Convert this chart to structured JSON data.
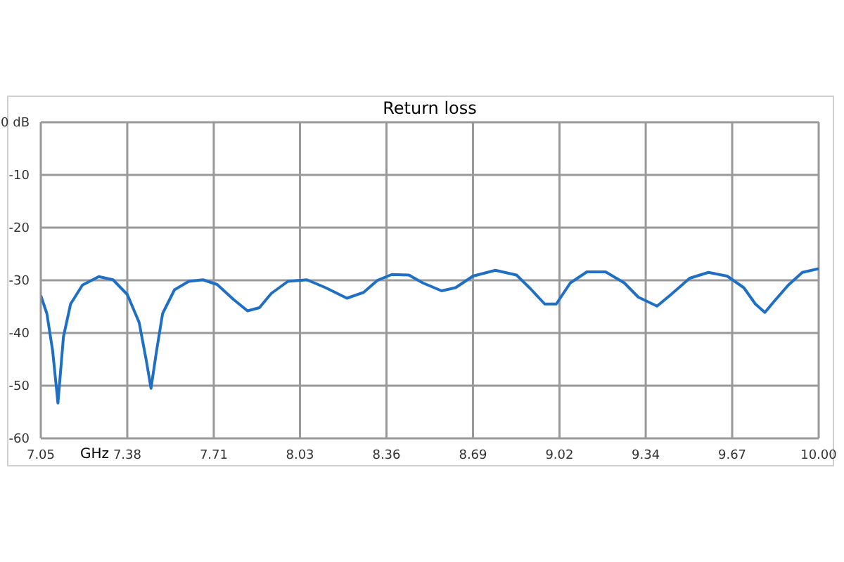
{
  "chart_data": {
    "type": "line",
    "title": "Return loss",
    "xlabel": "GHz",
    "x": [
      7.05,
      7.073,
      7.095,
      7.115,
      7.136,
      7.163,
      7.208,
      7.27,
      7.324,
      7.378,
      7.423,
      7.45,
      7.468,
      7.489,
      7.512,
      7.557,
      7.611,
      7.665,
      7.719,
      7.78,
      7.834,
      7.879,
      7.924,
      7.987,
      8.059,
      8.13,
      8.211,
      8.274,
      8.327,
      8.381,
      8.446,
      8.499,
      8.57,
      8.623,
      8.689,
      8.774,
      8.854,
      8.907,
      8.961,
      9.005,
      9.058,
      9.121,
      9.192,
      9.263,
      9.316,
      9.387,
      9.44,
      9.511,
      9.582,
      9.653,
      9.716,
      9.76,
      9.796,
      9.831,
      9.885,
      9.938,
      10.0
    ],
    "series": [
      {
        "color": "#1f6fc6",
        "values": [
          -32.9,
          -36.3,
          -43.4,
          -53.3,
          -40.7,
          -34.5,
          -30.9,
          -29.3,
          -29.9,
          -32.7,
          -38.0,
          -45.2,
          -50.5,
          -43.4,
          -36.3,
          -31.8,
          -30.2,
          -29.9,
          -30.8,
          -33.6,
          -35.8,
          -35.2,
          -32.5,
          -30.2,
          -29.9,
          -31.4,
          -33.4,
          -32.3,
          -30.0,
          -28.9,
          -29.0,
          -30.5,
          -32.0,
          -31.4,
          -29.2,
          -28.1,
          -29.0,
          -31.6,
          -34.5,
          -34.5,
          -30.5,
          -28.4,
          -28.4,
          -30.5,
          -33.2,
          -34.9,
          -32.7,
          -29.6,
          -28.5,
          -29.2,
          -31.4,
          -34.5,
          -36.1,
          -34.0,
          -30.9,
          -28.5,
          -27.8
        ]
      }
    ],
    "xlim": [
      7.05,
      10.0
    ],
    "xticks": [
      {
        "value": 7.05,
        "label": "7.05"
      },
      {
        "value": 7.378,
        "label": "7.38"
      },
      {
        "value": 7.706,
        "label": "7.71"
      },
      {
        "value": 8.033,
        "label": "8.03"
      },
      {
        "value": 8.361,
        "label": "8.36"
      },
      {
        "value": 8.689,
        "label": "8.69"
      },
      {
        "value": 9.017,
        "label": "9.02"
      },
      {
        "value": 9.344,
        "label": "9.34"
      },
      {
        "value": 9.672,
        "label": "9.67"
      },
      {
        "value": 10.0,
        "label": "10.00"
      }
    ],
    "ylim": [
      -60,
      0
    ],
    "yticks": [
      {
        "value": 0,
        "label": "0 dB"
      },
      -10,
      -20,
      -30,
      -40,
      -50,
      -60
    ],
    "grid": true,
    "marker": "none",
    "line_style": "solid"
  }
}
